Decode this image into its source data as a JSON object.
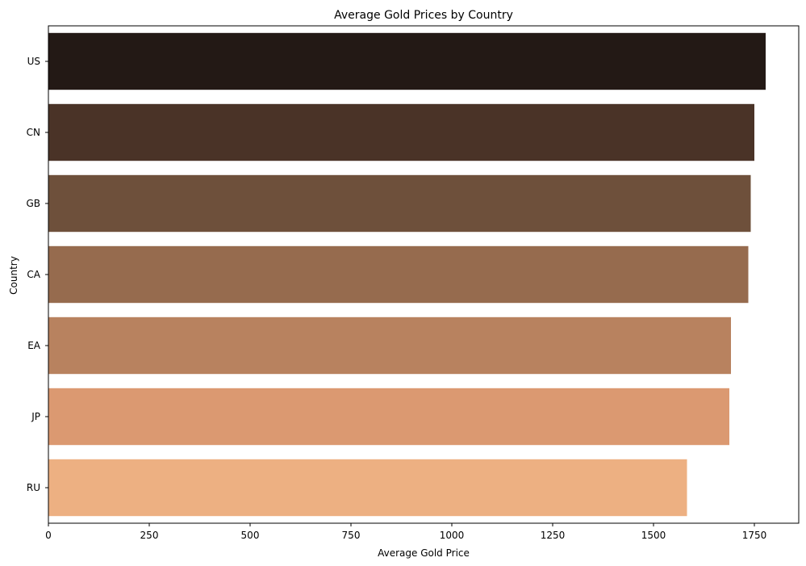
{
  "chart_data": {
    "type": "bar",
    "orientation": "horizontal",
    "title": "Average Gold Prices by Country",
    "xlabel": "Average Gold Price",
    "ylabel": "Country",
    "categories": [
      "US",
      "CN",
      "GB",
      "CA",
      "EA",
      "JP",
      "RU"
    ],
    "values": [
      1778,
      1750,
      1741,
      1735,
      1692,
      1688,
      1583
    ],
    "colors": [
      "#231915",
      "#4a3327",
      "#6e503b",
      "#966b4e",
      "#b8825f",
      "#db9971",
      "#edb082"
    ],
    "xlim": [
      0,
      1860
    ],
    "xticks": [
      0,
      250,
      500,
      750,
      1000,
      1250,
      1500,
      1750
    ],
    "xtick_labels": [
      "0",
      "250",
      "500",
      "750",
      "1000",
      "1250",
      "1500",
      "1750"
    ],
    "grid": false,
    "legend": false
  }
}
